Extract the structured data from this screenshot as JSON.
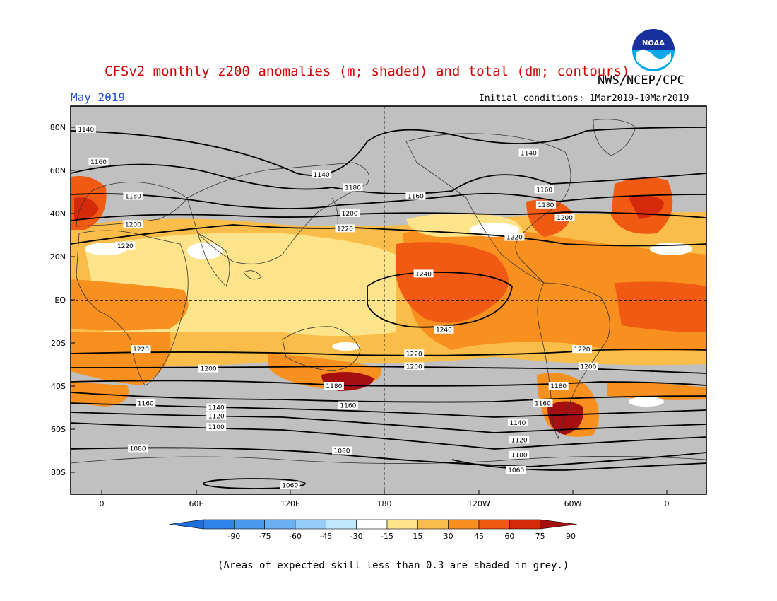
{
  "header": {
    "title": "CFSv2 monthly z200 anomalies (m; shaded) and total (dm; contours)",
    "agency": "NWS/NCEP/CPC",
    "month": "May 2019",
    "initial_conditions": "Initial conditions: 1Mar2019-10Mar2019",
    "logo_text": "NOAA"
  },
  "axes": {
    "lat_labels": [
      "80N",
      "60N",
      "40N",
      "20N",
      "EQ",
      "20S",
      "40S",
      "60S",
      "80S"
    ],
    "lon_labels": [
      "0",
      "60E",
      "120E",
      "180",
      "120W",
      "60W",
      "0"
    ]
  },
  "colorbar": {
    "labels": [
      "-90",
      "-75",
      "-60",
      "-45",
      "-30",
      "-15",
      "15",
      "30",
      "45",
      "60",
      "75",
      "90"
    ],
    "colors": [
      "#1e6fdc",
      "#2f82e8",
      "#4a98ee",
      "#6cb0f4",
      "#96cdf8",
      "#bfe8fa",
      "#ffffff",
      "#fde48a",
      "#fbbd4a",
      "#f7901f",
      "#f05a12",
      "#d42a0a",
      "#a50f0f"
    ]
  },
  "contours": {
    "levels": [
      "1060",
      "1080",
      "1100",
      "1120",
      "1140",
      "1160",
      "1180",
      "1200",
      "1220",
      "1240"
    ],
    "labels": [
      {
        "text": "1140",
        "lon": -10,
        "lat": 79
      },
      {
        "text": "1160",
        "lon": -2,
        "lat": 64
      },
      {
        "text": "1180",
        "lon": 20,
        "lat": 48
      },
      {
        "text": "1200",
        "lon": 20,
        "lat": 35
      },
      {
        "text": "1220",
        "lon": 15,
        "lat": 25
      },
      {
        "text": "1140",
        "lon": 140,
        "lat": 58
      },
      {
        "text": "1180",
        "lon": 160,
        "lat": 52
      },
      {
        "text": "1160",
        "lon": 200,
        "lat": 48
      },
      {
        "text": "1200",
        "lon": 158,
        "lat": 40
      },
      {
        "text": "1220",
        "lon": 155,
        "lat": 33
      },
      {
        "text": "1140",
        "lon": 272,
        "lat": 68
      },
      {
        "text": "1160",
        "lon": 282,
        "lat": 51
      },
      {
        "text": "1180",
        "lon": 283,
        "lat": 44
      },
      {
        "text": "1200",
        "lon": 295,
        "lat": 38
      },
      {
        "text": "1220",
        "lon": 263,
        "lat": 29
      },
      {
        "text": "1240",
        "lon": 205,
        "lat": 12
      },
      {
        "text": "1240",
        "lon": 218,
        "lat": -14
      },
      {
        "text": "1220",
        "lon": 25,
        "lat": -23
      },
      {
        "text": "1220",
        "lon": 199,
        "lat": -25
      },
      {
        "text": "1200",
        "lon": 199,
        "lat": -31
      },
      {
        "text": "1200",
        "lon": 68,
        "lat": -32
      },
      {
        "text": "1180",
        "lon": 148,
        "lat": -40
      },
      {
        "text": "1160",
        "lon": 28,
        "lat": -48
      },
      {
        "text": "1160",
        "lon": 157,
        "lat": -49
      },
      {
        "text": "1140",
        "lon": 73,
        "lat": -50
      },
      {
        "text": "1120",
        "lon": 73,
        "lat": -54
      },
      {
        "text": "1100",
        "lon": 73,
        "lat": -59
      },
      {
        "text": "1080",
        "lon": 23,
        "lat": -69
      },
      {
        "text": "1080",
        "lon": 153,
        "lat": -70
      },
      {
        "text": "1060",
        "lon": 120,
        "lat": -86
      },
      {
        "text": "1220",
        "lon": 306,
        "lat": -23
      },
      {
        "text": "1200",
        "lon": 310,
        "lat": -31
      },
      {
        "text": "1180",
        "lon": 291,
        "lat": -40
      },
      {
        "text": "1160",
        "lon": 281,
        "lat": -48
      },
      {
        "text": "1140",
        "lon": 265,
        "lat": -57
      },
      {
        "text": "1120",
        "lon": 266,
        "lat": -65
      },
      {
        "text": "1100",
        "lon": 266,
        "lat": -72
      },
      {
        "text": "1060",
        "lon": 264,
        "lat": -79
      }
    ]
  },
  "footer": "(Areas of expected skill less than 0.3 are shaded in grey.)"
}
